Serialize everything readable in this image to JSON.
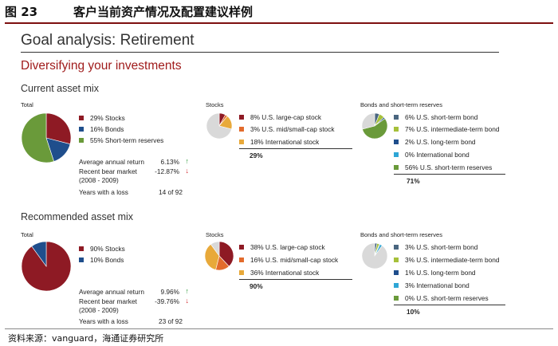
{
  "figure": {
    "label": "图 23",
    "caption": "客户当前资产情况及配置建议样例"
  },
  "main_title": "Goal analysis: Retirement",
  "subtitle": "Diversifying your investments",
  "source": "资料来源：vanguard，海通证券研究所",
  "colors": {
    "stocks": "#8e1a24",
    "bonds": "#1f4e8c",
    "short_term": "#6a9a3a",
    "us_large": "#8e1a24",
    "us_mid_small": "#e36b2c",
    "international_stock": "#e8a93a",
    "short_term_bond": "#4a6680",
    "intermediate_bond": "#a6c03a",
    "long_term_bond": "#1f4e8c",
    "international_bond": "#2ea6d6",
    "pie_remainder": "#d9d9d9",
    "arrow_up": "#2e9a3a",
    "arrow_down": "#d0262a"
  },
  "current": {
    "section_title": "Current asset mix",
    "total_label": "Total",
    "stocks_label": "Stocks",
    "bonds_label": "Bonds and short-term reserves",
    "total_legend": [
      "29% Stocks",
      "16% Bonds",
      "55% Short-term reserves"
    ],
    "stocks_legend": [
      "8% U.S. large-cap stock",
      "3% U.S. mid/small-cap stock",
      "18% International stock"
    ],
    "stocks_total": "29%",
    "bonds_legend": [
      "6% U.S. short-term bond",
      "7% U.S. intermediate-term bond",
      "2% U.S. long-term bond",
      "0% International bond",
      "56% U.S. short-term reserves"
    ],
    "bonds_total": "71%",
    "stats": {
      "avg_label": "Average annual return",
      "avg_value": "6.13%",
      "bear_label_1": "Recent bear market",
      "bear_label_2": "(2008 - 2009)",
      "bear_value": "-12.87%",
      "loss_label": "Years with a loss",
      "loss_value": "14 of 92"
    }
  },
  "recommended": {
    "section_title": "Recommended asset mix",
    "total_label": "Total",
    "stocks_label": "Stocks",
    "bonds_label": "Bonds and short-term reserves",
    "total_legend": [
      "90% Stocks",
      "10% Bonds"
    ],
    "stocks_legend": [
      "38% U.S. large-cap stock",
      "16% U.S. mid/small-cap stock",
      "36% International stock"
    ],
    "stocks_total": "90%",
    "bonds_legend": [
      "3% U.S. short-term bond",
      "3% U.S. intermediate-term bond",
      "1% U.S. long-term bond",
      "3% International bond",
      "0% U.S. short-term reserves"
    ],
    "bonds_total": "10%",
    "stats": {
      "avg_label": "Average annual return",
      "avg_value": "9.96%",
      "bear_label_1": "Recent bear market",
      "bear_label_2": "(2008 - 2009)",
      "bear_value": "-39.76%",
      "loss_label": "Years with a loss",
      "loss_value": "23 of 92"
    }
  },
  "chart_data": [
    {
      "type": "pie",
      "title": "Current asset mix - Total",
      "categories": [
        "Stocks",
        "Bonds",
        "Short-term reserves"
      ],
      "values": [
        29,
        16,
        55
      ]
    },
    {
      "type": "pie",
      "title": "Current asset mix - Stocks",
      "categories": [
        "U.S. large-cap stock",
        "U.S. mid/small-cap stock",
        "International stock"
      ],
      "values": [
        8,
        3,
        18
      ]
    },
    {
      "type": "pie",
      "title": "Current asset mix - Bonds and short-term reserves",
      "categories": [
        "U.S. short-term bond",
        "U.S. intermediate-term bond",
        "U.S. long-term bond",
        "International bond",
        "U.S. short-term reserves"
      ],
      "values": [
        6,
        7,
        2,
        0,
        56
      ]
    },
    {
      "type": "pie",
      "title": "Recommended asset mix - Total",
      "categories": [
        "Stocks",
        "Bonds"
      ],
      "values": [
        90,
        10
      ]
    },
    {
      "type": "pie",
      "title": "Recommended asset mix - Stocks",
      "categories": [
        "U.S. large-cap stock",
        "U.S. mid/small-cap stock",
        "International stock"
      ],
      "values": [
        38,
        16,
        36
      ]
    },
    {
      "type": "pie",
      "title": "Recommended asset mix - Bonds and short-term reserves",
      "categories": [
        "U.S. short-term bond",
        "U.S. intermediate-term bond",
        "U.S. long-term bond",
        "International bond",
        "U.S. short-term reserves"
      ],
      "values": [
        3,
        3,
        1,
        3,
        0
      ]
    }
  ]
}
